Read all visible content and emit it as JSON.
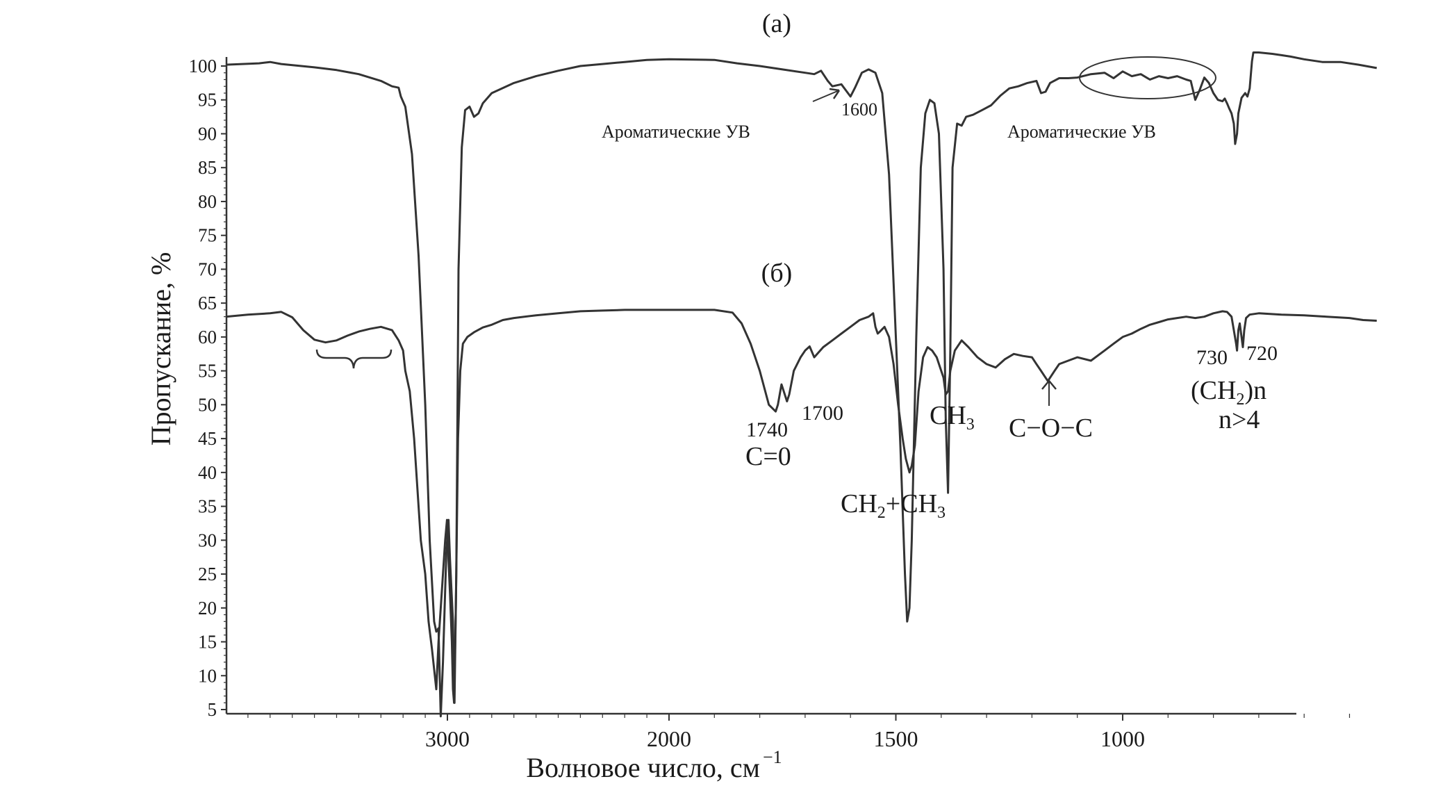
{
  "chart_data": {
    "type": "line",
    "xlabel": "Волновое число, см",
    "xlabel_sup": "−1",
    "ylabel": "Пропускание, %",
    "xlim": [
      4000,
      430
    ],
    "ylim": [
      4,
      102
    ],
    "x_ticks": [
      "3000",
      "2000",
      "1500",
      "1000"
    ],
    "y_ticks": [
      "100",
      "95",
      "90",
      "85",
      "80",
      "75",
      "70",
      "65",
      "60",
      "55",
      "50",
      "45",
      "40",
      "35",
      "30",
      "25",
      "20",
      "15",
      "10",
      "5"
    ],
    "grid": false,
    "series": [
      {
        "name": "(а)",
        "points": [
          [
            4000,
            100.2
          ],
          [
            3850,
            100.4
          ],
          [
            3800,
            100.6
          ],
          [
            3750,
            100.3
          ],
          [
            3600,
            99.8
          ],
          [
            3500,
            99.4
          ],
          [
            3400,
            98.8
          ],
          [
            3300,
            97.8
          ],
          [
            3250,
            97
          ],
          [
            3220,
            96.8
          ],
          [
            3210,
            95.5
          ],
          [
            3190,
            94
          ],
          [
            3160,
            87
          ],
          [
            3130,
            72
          ],
          [
            3100,
            50
          ],
          [
            3080,
            30
          ],
          [
            3060,
            18
          ],
          [
            3050,
            16.5
          ],
          [
            3040,
            17
          ],
          [
            3030,
            4
          ],
          [
            3020,
            12
          ],
          [
            3005,
            28
          ],
          [
            2995,
            33
          ],
          [
            2988,
            27
          ],
          [
            2975,
            18
          ],
          [
            2968,
            6
          ],
          [
            2960,
            25
          ],
          [
            2950,
            70
          ],
          [
            2935,
            88
          ],
          [
            2920,
            93.5
          ],
          [
            2900,
            94
          ],
          [
            2880,
            92.5
          ],
          [
            2860,
            93
          ],
          [
            2840,
            94.5
          ],
          [
            2800,
            96
          ],
          [
            2700,
            97.5
          ],
          [
            2600,
            98.5
          ],
          [
            2500,
            99.3
          ],
          [
            2400,
            100
          ],
          [
            2300,
            100.3
          ],
          [
            2200,
            100.6
          ],
          [
            2100,
            100.9
          ],
          [
            2000,
            101
          ],
          [
            1900,
            100.9
          ],
          [
            1850,
            100.4
          ],
          [
            1800,
            100
          ],
          [
            1750,
            99.5
          ],
          [
            1700,
            99
          ],
          [
            1680,
            98.8
          ],
          [
            1665,
            99.3
          ],
          [
            1650,
            97.8
          ],
          [
            1640,
            97
          ],
          [
            1620,
            97.3
          ],
          [
            1600,
            95.5
          ],
          [
            1590,
            96.8
          ],
          [
            1575,
            99
          ],
          [
            1560,
            99.5
          ],
          [
            1545,
            99
          ],
          [
            1530,
            96
          ],
          [
            1515,
            84
          ],
          [
            1500,
            60
          ],
          [
            1490,
            44
          ],
          [
            1480,
            25
          ],
          [
            1475,
            18
          ],
          [
            1470,
            20
          ],
          [
            1465,
            30
          ],
          [
            1455,
            60
          ],
          [
            1445,
            85
          ],
          [
            1435,
            93
          ],
          [
            1425,
            95
          ],
          [
            1415,
            94.5
          ],
          [
            1405,
            90
          ],
          [
            1395,
            70
          ],
          [
            1390,
            48
          ],
          [
            1385,
            37
          ],
          [
            1380,
            58
          ],
          [
            1375,
            85
          ],
          [
            1365,
            91.5
          ],
          [
            1355,
            91.2
          ],
          [
            1345,
            92.5
          ],
          [
            1330,
            92.8
          ],
          [
            1310,
            93.5
          ],
          [
            1290,
            94.2
          ],
          [
            1270,
            95.6
          ],
          [
            1250,
            96.7
          ],
          [
            1230,
            97
          ],
          [
            1210,
            97.5
          ],
          [
            1190,
            97.8
          ],
          [
            1180,
            96
          ],
          [
            1170,
            96.2
          ],
          [
            1160,
            97.5
          ],
          [
            1140,
            98.2
          ],
          [
            1120,
            98.2
          ],
          [
            1100,
            98.3
          ],
          [
            1070,
            98.8
          ],
          [
            1040,
            99
          ],
          [
            1020,
            98.2
          ],
          [
            1000,
            99.2
          ],
          [
            980,
            98.5
          ],
          [
            960,
            98.8
          ],
          [
            940,
            98
          ],
          [
            920,
            98.5
          ],
          [
            900,
            98.2
          ],
          [
            880,
            98.5
          ],
          [
            860,
            98
          ],
          [
            850,
            97.8
          ],
          [
            840,
            95
          ],
          [
            830,
            96.5
          ],
          [
            820,
            98.3
          ],
          [
            810,
            97.5
          ],
          [
            800,
            96
          ],
          [
            790,
            95
          ],
          [
            780,
            94.8
          ],
          [
            775,
            95.2
          ],
          [
            770,
            94.5
          ],
          [
            765,
            93.7
          ],
          [
            760,
            93
          ],
          [
            755,
            91.5
          ],
          [
            752,
            88.5
          ],
          [
            748,
            90
          ],
          [
            745,
            93
          ],
          [
            738,
            95.3
          ],
          [
            730,
            96
          ],
          [
            725,
            95.5
          ],
          [
            720,
            96.7
          ],
          [
            715,
            100.7
          ],
          [
            712,
            102
          ],
          [
            700,
            102
          ],
          [
            670,
            101.8
          ],
          [
            650,
            101.6
          ],
          [
            630,
            101.4
          ],
          [
            600,
            101
          ],
          [
            560,
            100.6
          ],
          [
            520,
            100.6
          ],
          [
            480,
            100.2
          ],
          [
            440,
            99.7
          ]
        ]
      },
      {
        "name": "(б)",
        "points": [
          [
            4000,
            63
          ],
          [
            3900,
            63.3
          ],
          [
            3800,
            63.5
          ],
          [
            3750,
            63.7
          ],
          [
            3700,
            62.9
          ],
          [
            3650,
            61
          ],
          [
            3600,
            59.6
          ],
          [
            3550,
            59.2
          ],
          [
            3500,
            59.5
          ],
          [
            3450,
            60.2
          ],
          [
            3400,
            60.8
          ],
          [
            3350,
            61.2
          ],
          [
            3300,
            61.5
          ],
          [
            3250,
            61
          ],
          [
            3220,
            59.5
          ],
          [
            3200,
            58
          ],
          [
            3190,
            55
          ],
          [
            3170,
            52
          ],
          [
            3150,
            45
          ],
          [
            3120,
            30
          ],
          [
            3100,
            25
          ],
          [
            3085,
            18
          ],
          [
            3070,
            14
          ],
          [
            3050,
            8
          ],
          [
            3040,
            15
          ],
          [
            3030,
            20
          ],
          [
            3020,
            25
          ],
          [
            3010,
            30
          ],
          [
            3002,
            33
          ],
          [
            2995,
            27
          ],
          [
            2988,
            22
          ],
          [
            2980,
            15
          ],
          [
            2975,
            8
          ],
          [
            2970,
            6
          ],
          [
            2962,
            20
          ],
          [
            2952,
            45
          ],
          [
            2942,
            55
          ],
          [
            2930,
            59
          ],
          [
            2910,
            60
          ],
          [
            2880,
            60.7
          ],
          [
            2840,
            61.4
          ],
          [
            2800,
            61.8
          ],
          [
            2750,
            62.5
          ],
          [
            2700,
            62.8
          ],
          [
            2600,
            63.2
          ],
          [
            2500,
            63.5
          ],
          [
            2400,
            63.8
          ],
          [
            2300,
            63.9
          ],
          [
            2200,
            64
          ],
          [
            2100,
            64
          ],
          [
            2000,
            64
          ],
          [
            1900,
            64
          ],
          [
            1860,
            63.6
          ],
          [
            1840,
            62
          ],
          [
            1820,
            59
          ],
          [
            1800,
            55
          ],
          [
            1780,
            50
          ],
          [
            1765,
            49
          ],
          [
            1760,
            50
          ],
          [
            1752,
            53
          ],
          [
            1740,
            50.5
          ],
          [
            1735,
            51.5
          ],
          [
            1725,
            55
          ],
          [
            1710,
            57
          ],
          [
            1700,
            58
          ],
          [
            1690,
            58.6
          ],
          [
            1680,
            57
          ],
          [
            1660,
            58.5
          ],
          [
            1640,
            59.5
          ],
          [
            1620,
            60.5
          ],
          [
            1600,
            61.5
          ],
          [
            1580,
            62.5
          ],
          [
            1560,
            63
          ],
          [
            1550,
            63.5
          ],
          [
            1545,
            61.5
          ],
          [
            1540,
            60.5
          ],
          [
            1535,
            60.8
          ],
          [
            1525,
            61.5
          ],
          [
            1515,
            60
          ],
          [
            1505,
            56
          ],
          [
            1495,
            50
          ],
          [
            1485,
            45
          ],
          [
            1478,
            42
          ],
          [
            1470,
            40
          ],
          [
            1465,
            41
          ],
          [
            1458,
            44
          ],
          [
            1450,
            52
          ],
          [
            1440,
            57
          ],
          [
            1430,
            58.5
          ],
          [
            1420,
            58
          ],
          [
            1410,
            57
          ],
          [
            1400,
            55
          ],
          [
            1395,
            54
          ],
          [
            1390,
            51.5
          ],
          [
            1385,
            52
          ],
          [
            1380,
            55
          ],
          [
            1370,
            58
          ],
          [
            1355,
            59.5
          ],
          [
            1340,
            58.5
          ],
          [
            1320,
            57
          ],
          [
            1300,
            56
          ],
          [
            1280,
            55.5
          ],
          [
            1260,
            56.7
          ],
          [
            1240,
            57.5
          ],
          [
            1220,
            57.2
          ],
          [
            1200,
            57
          ],
          [
            1190,
            56
          ],
          [
            1180,
            55
          ],
          [
            1170,
            54
          ],
          [
            1165,
            53.5
          ],
          [
            1160,
            54
          ],
          [
            1150,
            55
          ],
          [
            1140,
            56
          ],
          [
            1120,
            56.5
          ],
          [
            1100,
            57
          ],
          [
            1070,
            56.5
          ],
          [
            1040,
            58
          ],
          [
            1020,
            59
          ],
          [
            1000,
            60
          ],
          [
            980,
            60.5
          ],
          [
            960,
            61.2
          ],
          [
            940,
            61.8
          ],
          [
            920,
            62.2
          ],
          [
            900,
            62.6
          ],
          [
            880,
            62.8
          ],
          [
            860,
            63
          ],
          [
            840,
            62.8
          ],
          [
            820,
            63
          ],
          [
            800,
            63.5
          ],
          [
            780,
            63.8
          ],
          [
            770,
            63.7
          ],
          [
            760,
            63
          ],
          [
            755,
            61
          ],
          [
            750,
            59
          ],
          [
            748,
            58
          ],
          [
            745,
            61
          ],
          [
            742,
            62
          ],
          [
            738,
            60
          ],
          [
            735,
            58.5
          ],
          [
            732,
            61
          ],
          [
            728,
            62.8
          ],
          [
            720,
            63.3
          ],
          [
            700,
            63.5
          ],
          [
            650,
            63.3
          ],
          [
            600,
            63.2
          ],
          [
            550,
            63
          ],
          [
            500,
            62.8
          ],
          [
            470,
            62.5
          ],
          [
            440,
            62.4
          ]
        ]
      }
    ],
    "annotations": {
      "panel_a": "(а)",
      "panel_b": "(б)",
      "aromatic_left": "Ароматические УВ",
      "aromatic_right": "Ароматические УВ",
      "peak_1600": "1600",
      "peak_1740": "1740",
      "peak_1700": "1700",
      "co_group": "C=0",
      "ch2_ch3_a": "CH",
      "ch2_ch3_sub1": "2",
      "ch2_ch3_b": "+CH",
      "ch2_ch3_sub2": "3",
      "ch3": "CH",
      "ch3_sub": "3",
      "coc": "C−O−C",
      "peak_730": "730",
      "peak_720": "720",
      "ch2n_a": "(CH",
      "ch2n_sub": "2",
      "ch2n_b": ")n",
      "n_cond": "n>4"
    }
  }
}
